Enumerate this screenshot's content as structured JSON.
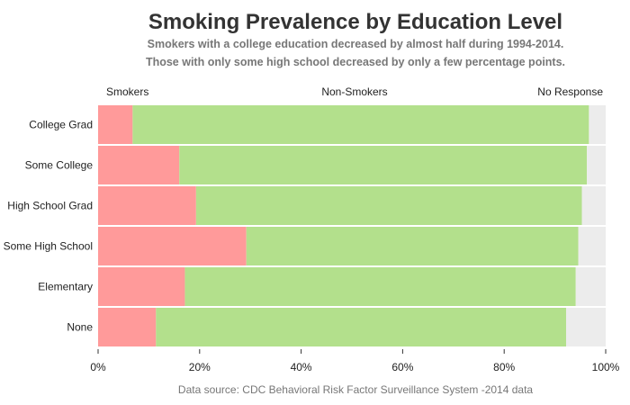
{
  "chart_data": {
    "type": "bar",
    "orientation": "horizontal",
    "stacked": true,
    "normalized": true,
    "title": "Smoking Prevalence by Education Level",
    "subtitle_lines": [
      "Smokers with a college education decreased by almost half during 1994-2014.",
      "Those with only some high school decreased by only a few percentage points."
    ],
    "categories": [
      "College Grad",
      "Some College",
      "High School Grad",
      "Some High School",
      "Elementary",
      "None"
    ],
    "series": [
      {
        "name": "Smokers",
        "color": "#ff9a9a",
        "values": [
          6.8,
          16.0,
          19.3,
          29.2,
          17.1,
          11.4
        ]
      },
      {
        "name": "Non-Smokers",
        "color": "#b3e08c",
        "values": [
          89.9,
          80.3,
          76.0,
          65.4,
          77.0,
          80.8
        ]
      },
      {
        "name": "No Response",
        "color": "#ececec",
        "values": [
          3.3,
          3.7,
          4.7,
          5.4,
          5.9,
          7.8
        ]
      }
    ],
    "x_ticks": [
      "0%",
      "20%",
      "40%",
      "60%",
      "80%",
      "100%"
    ],
    "xlim": [
      0,
      100
    ],
    "source": "Data source: CDC Behavioral Risk Factor Surveillance System -2014 data"
  }
}
